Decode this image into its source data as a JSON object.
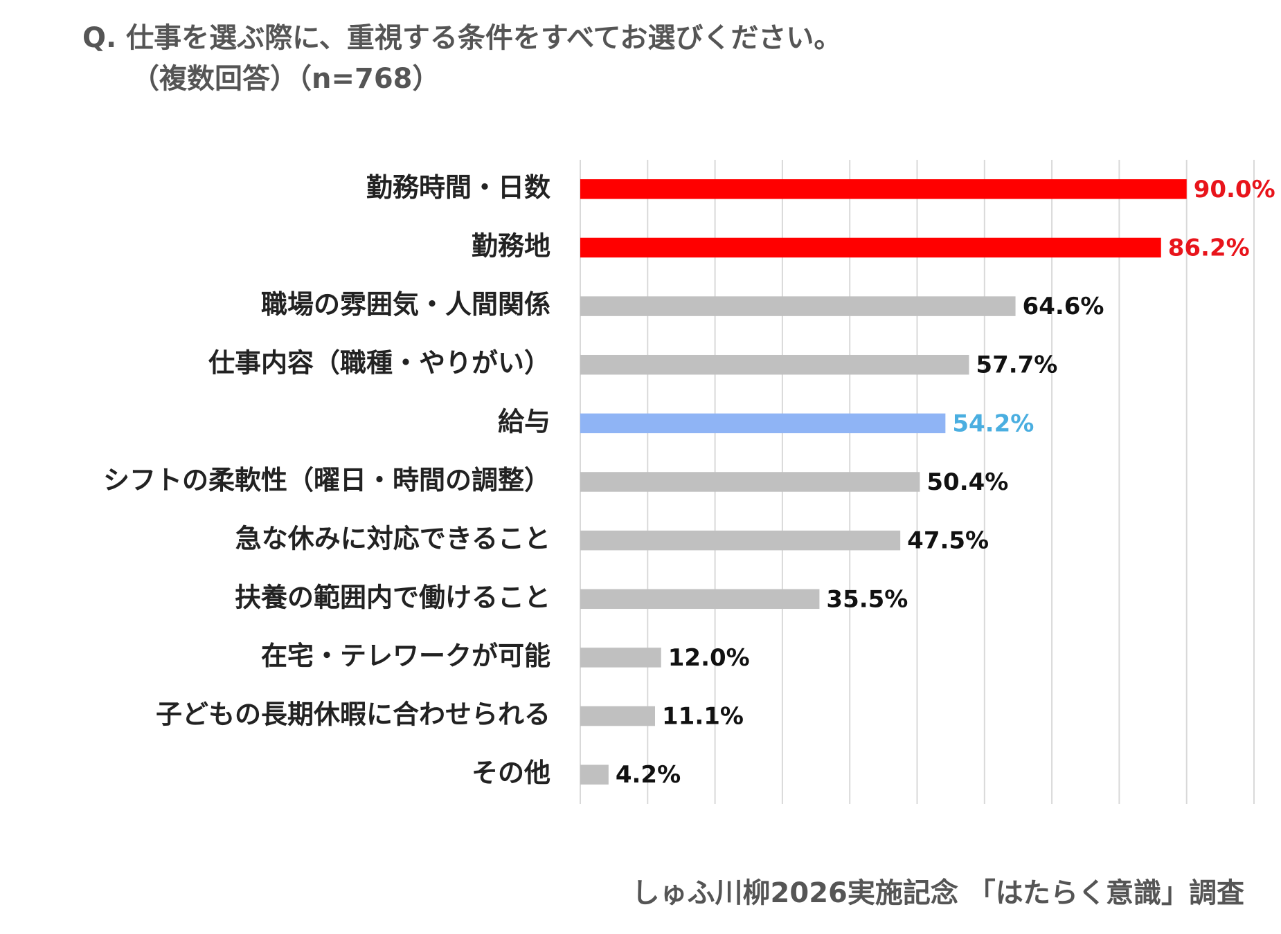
{
  "chart_data": {
    "type": "barh",
    "title": "Q.  仕事を選ぶ際に、重視する条件をすべてお選びください。",
    "subtitle": "（複数回答）（n=768）",
    "source": "しゅふ川柳2026実施記念 「はたらく意識」調査",
    "categories": [
      "勤務時間・日数",
      "勤務地",
      "職場の雰囲気・人間関係",
      "仕事内容（職種・やりがい）",
      "給与",
      "シフトの柔軟性（曜日・時間の調整）",
      "急な休みに対応できること",
      "扶養の範囲内で働けること",
      "在宅・テレワークが可能",
      "子どもの長期休暇に合わせられる",
      "その他"
    ],
    "values": [
      90.0,
      86.2,
      64.6,
      57.7,
      54.2,
      50.4,
      47.5,
      35.5,
      12.0,
      11.1,
      4.2
    ],
    "value_labels": [
      "90.0%",
      "86.2%",
      "64.6%",
      "57.7%",
      "54.2%",
      "50.4%",
      "47.5%",
      "35.5%",
      "12.0%",
      "11.1%",
      "4.2%"
    ],
    "colors": [
      "#ff0000",
      "#ff0000",
      "#c0c0c0",
      "#c0c0c0",
      "#8fb4f5",
      "#c0c0c0",
      "#c0c0c0",
      "#c0c0c0",
      "#c0c0c0",
      "#c0c0c0",
      "#c0c0c0"
    ],
    "label_colors": [
      "#e8141b",
      "#e8141b",
      "#111111",
      "#111111",
      "#4aaee0",
      "#111111",
      "#111111",
      "#111111",
      "#111111",
      "#111111",
      "#111111"
    ],
    "xlim": [
      0,
      100
    ],
    "xticks": [
      0,
      10,
      20,
      30,
      40,
      50,
      60,
      70,
      80,
      90,
      100
    ],
    "grid": true
  }
}
